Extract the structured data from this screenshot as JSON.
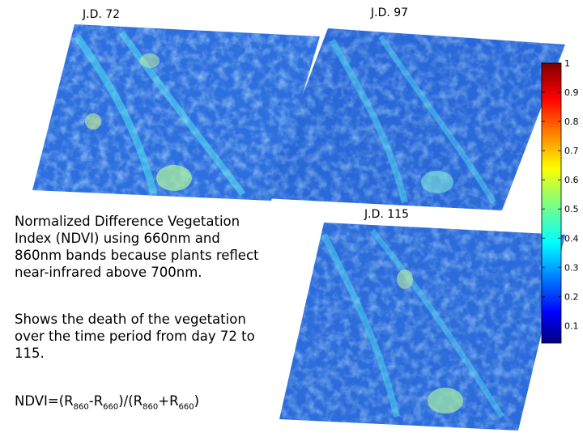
{
  "panels": [
    {
      "label": "J.D. 72",
      "day": 72
    },
    {
      "label": "J.D. 97",
      "day": 97
    },
    {
      "label": "J.D. 115",
      "day": 115
    }
  ],
  "description": {
    "paragraph1": "Normalized Difference Vegetation Index (NDVI) using 660nm and 860nm bands because plants reflect near-infrared above 700nm.",
    "paragraph2": "Shows the death of the vegetation over the time period from day 72 to 115.",
    "formula": {
      "prefix": "NDVI=(R",
      "sub1": "860",
      "mid1": "-R",
      "sub2": "660",
      "mid2": ")/(R",
      "sub3": "860",
      "mid3": "+R",
      "sub4": "660",
      "suffix": ")"
    }
  },
  "colorbar": {
    "ticks": [
      "1",
      "0.9",
      "0.8",
      "0.7",
      "0.6",
      "0.5",
      "0.4",
      "0.3",
      "0.2",
      "0.1"
    ],
    "range": [
      0.04,
      1.0
    ],
    "colormap": "jet"
  }
}
